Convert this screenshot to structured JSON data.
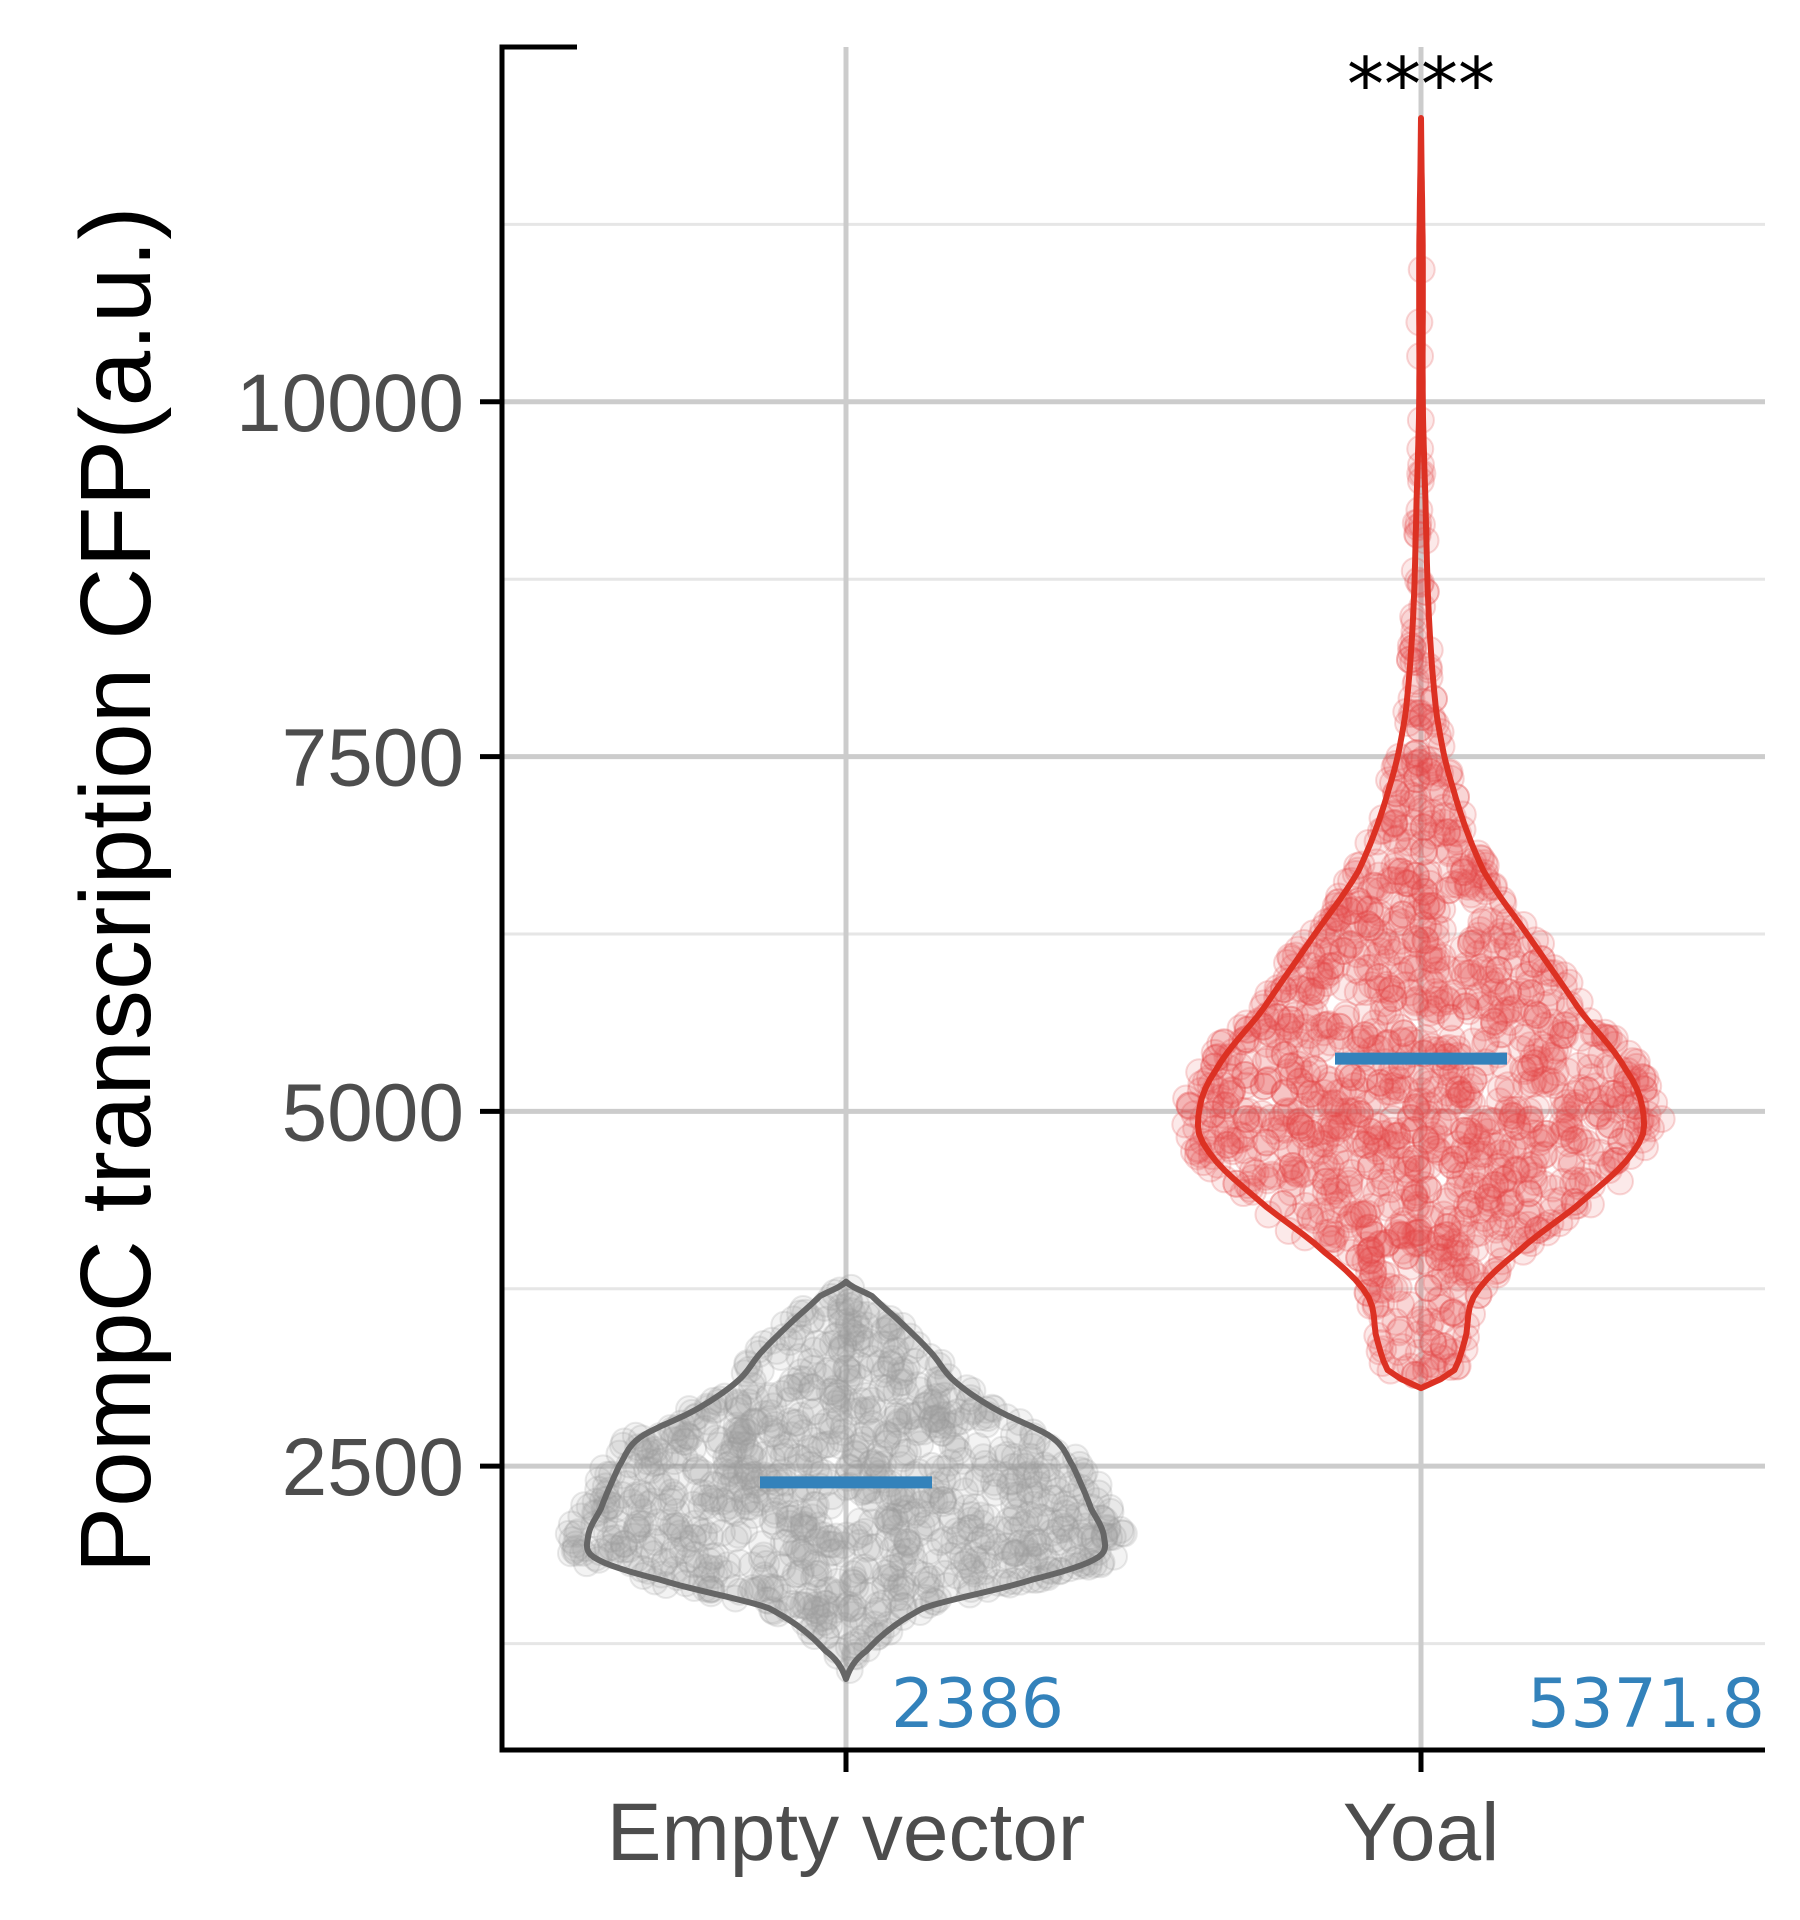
{
  "chart_data": {
    "type": "violin",
    "title": "",
    "xlabel": "",
    "ylabel": "PompC transcription CFP(a.u.)",
    "ylim": [
      500,
      12500
    ],
    "yticks": [
      2500,
      5000,
      7500,
      10000
    ],
    "grid": true,
    "categories": [
      "Empty vector",
      "Yoal"
    ],
    "series": [
      {
        "category": "Empty vector",
        "color": "#999999",
        "outline_color": "#666666",
        "mean_label": "2386",
        "mean": 2386,
        "min": 1000,
        "max": 3800,
        "density_profile": [
          [
            1000,
            0.0
          ],
          [
            1200,
            0.08
          ],
          [
            1500,
            0.3
          ],
          [
            1700,
            0.72
          ],
          [
            1850,
            0.97
          ],
          [
            2000,
            1.0
          ],
          [
            2200,
            0.95
          ],
          [
            2500,
            0.88
          ],
          [
            2700,
            0.8
          ],
          [
            2900,
            0.58
          ],
          [
            3100,
            0.42
          ],
          [
            3300,
            0.33
          ],
          [
            3500,
            0.22
          ],
          [
            3700,
            0.1
          ],
          [
            3800,
            0.0
          ]
        ]
      },
      {
        "category": "Yoal",
        "color": "#e34a4a",
        "outline_color": "#dc3123",
        "mean_label": "5371.8",
        "mean": 5371.8,
        "min": 3050,
        "max": 12000,
        "significance": "****",
        "density_profile": [
          [
            3050,
            0.0
          ],
          [
            3150,
            0.14
          ],
          [
            3400,
            0.2
          ],
          [
            3700,
            0.24
          ],
          [
            4000,
            0.43
          ],
          [
            4400,
            0.75
          ],
          [
            4750,
            0.97
          ],
          [
            5000,
            1.0
          ],
          [
            5300,
            0.92
          ],
          [
            5700,
            0.72
          ],
          [
            6200,
            0.5
          ],
          [
            6700,
            0.28
          ],
          [
            7300,
            0.14
          ],
          [
            7800,
            0.07
          ],
          [
            8500,
            0.035
          ],
          [
            9300,
            0.02
          ],
          [
            10000,
            0.008
          ],
          [
            11000,
            0.008
          ],
          [
            12000,
            0.0
          ]
        ]
      }
    ],
    "mean_bar_color": "#3382bb",
    "annotation_color": "#3382bb"
  }
}
